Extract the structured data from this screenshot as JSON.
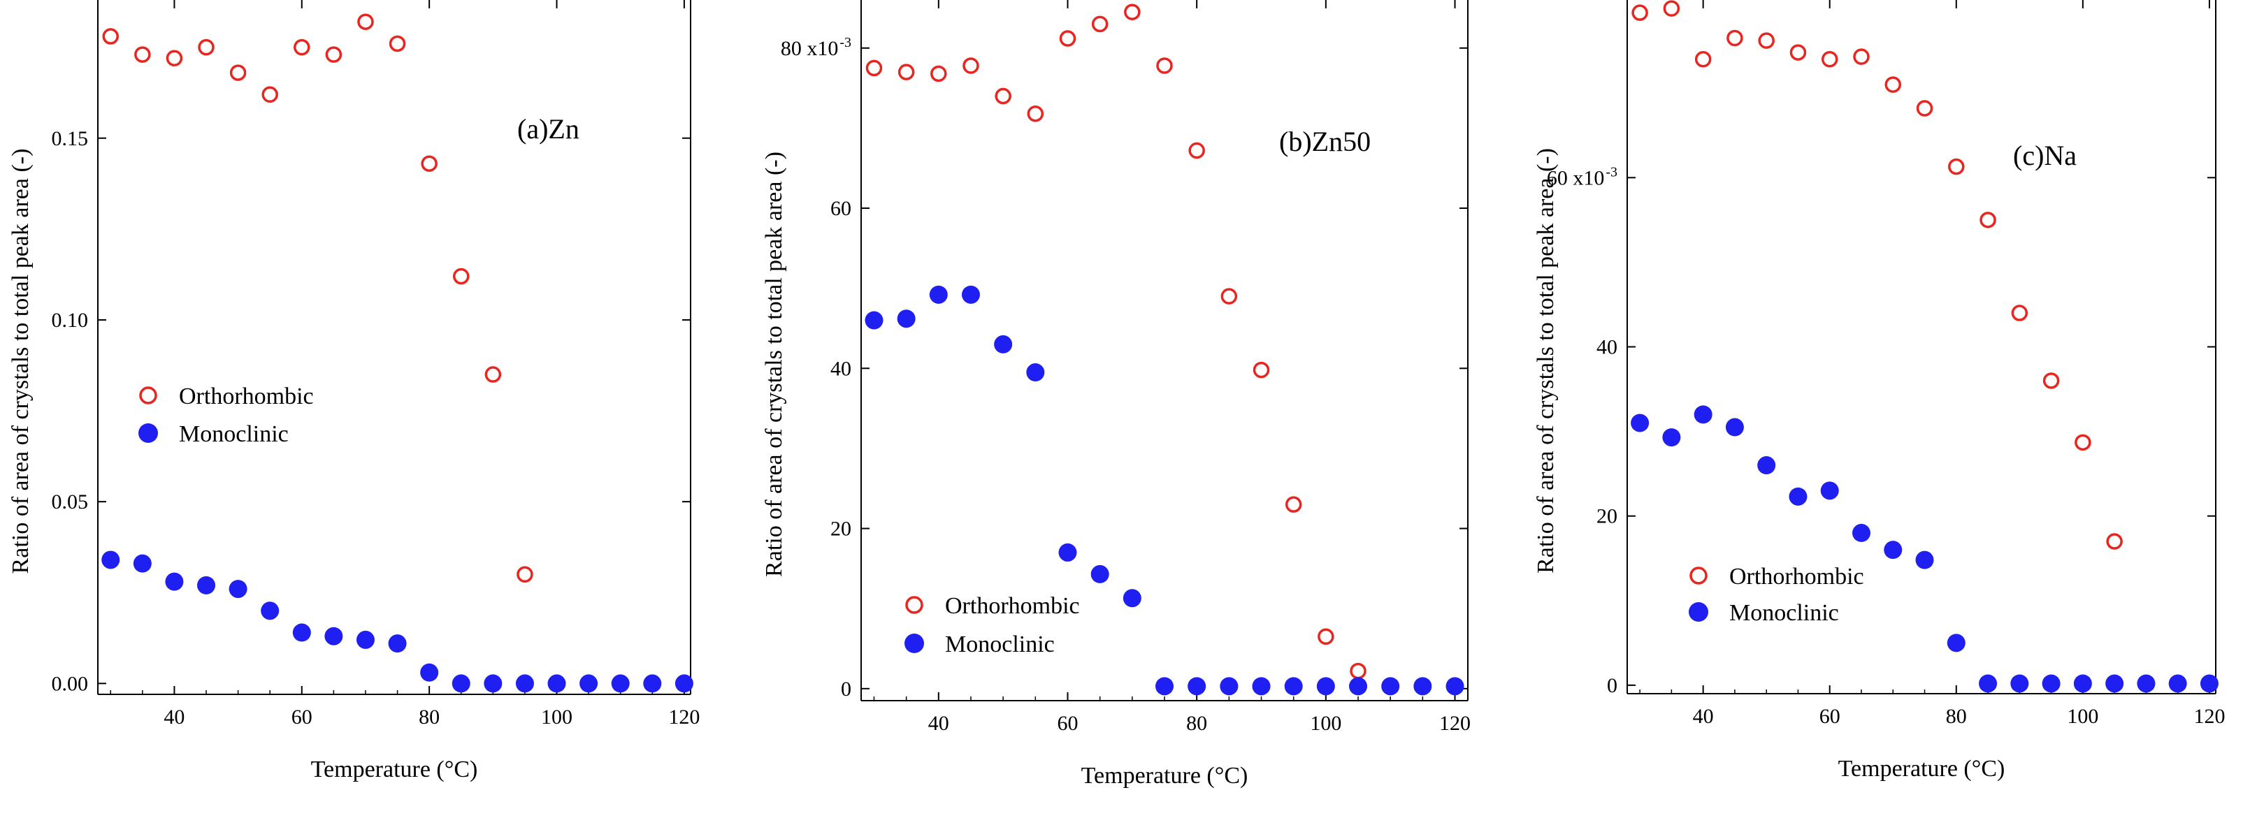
{
  "figure_title": "Ratio of area of crystals to total peak area vs temperature",
  "colors": {
    "orthorhombic": "#e8251f",
    "monoclinic": "#1f1ff2",
    "axis": "#000000"
  },
  "chart_data": [
    {
      "type": "scatter",
      "title": "(a)Zn",
      "xlabel": "Temperature (°C)",
      "ylabel": "Ratio of area of crystals to total peak area (-)",
      "xlim": [
        28,
        121
      ],
      "ylim": [
        -0.003,
        0.188
      ],
      "x_ticks": [
        40,
        60,
        80,
        100,
        120
      ],
      "x_tick_labels": [
        "40",
        "60",
        "80",
        "100",
        "120"
      ],
      "y_ticks": [
        0.0,
        0.05,
        0.1,
        0.15
      ],
      "y_tick_labels": [
        "0.00",
        "0.05",
        "0.10",
        "0.15"
      ],
      "legend": {
        "position": "center-left",
        "entries": [
          "Orthorhombic",
          "Monoclinic"
        ]
      },
      "series": [
        {
          "name": "Orthorhombic",
          "marker": "open-circle",
          "x": [
            30,
            35,
            40,
            45,
            50,
            55,
            60,
            65,
            70,
            75,
            80,
            85,
            90,
            95
          ],
          "y": [
            0.178,
            0.173,
            0.172,
            0.175,
            0.168,
            0.162,
            0.175,
            0.173,
            0.182,
            0.176,
            0.143,
            0.112,
            0.085,
            0.03
          ]
        },
        {
          "name": "Monoclinic",
          "marker": "filled-circle",
          "x": [
            30,
            35,
            40,
            45,
            50,
            55,
            60,
            65,
            70,
            75,
            80,
            85,
            90,
            95,
            100,
            105,
            110,
            115,
            120
          ],
          "y": [
            0.034,
            0.033,
            0.028,
            0.027,
            0.026,
            0.02,
            0.014,
            0.013,
            0.012,
            0.011,
            0.003,
            0.0,
            0.0,
            0.0,
            0.0,
            0.0,
            0.0,
            0.0,
            0.0
          ]
        }
      ]
    },
    {
      "type": "scatter",
      "title": "(b)Zn50",
      "xlabel": "Temperature (°C)",
      "ylabel": "Ratio of area of crystals to total peak area (-)",
      "xlim": [
        28,
        122
      ],
      "ylim": [
        -1.5,
        86
      ],
      "x_ticks": [
        40,
        60,
        80,
        100,
        120
      ],
      "x_tick_labels": [
        "40",
        "60",
        "80",
        "100",
        "120"
      ],
      "y_ticks": [
        0,
        20,
        40,
        60,
        80
      ],
      "y_tick_labels": [
        "0",
        "20",
        "40",
        "60",
        "80 x10"
      ],
      "y_tick_exponent": "-3",
      "legend": {
        "position": "bottom-left",
        "entries": [
          "Orthorhombic",
          "Monoclinic"
        ]
      },
      "series": [
        {
          "name": "Orthorhombic",
          "marker": "open-circle",
          "x": [
            30,
            35,
            40,
            45,
            50,
            55,
            60,
            65,
            70,
            75,
            80,
            85,
            90,
            95,
            100,
            105
          ],
          "y": [
            77.5,
            77,
            76.8,
            77.8,
            74,
            71.8,
            81.2,
            83,
            84.5,
            77.8,
            67.2,
            49,
            39.8,
            23,
            6.5,
            2.2
          ]
        },
        {
          "name": "Monoclinic",
          "marker": "filled-circle",
          "x": [
            30,
            35,
            40,
            45,
            50,
            55,
            60,
            65,
            70,
            75,
            80,
            85,
            90,
            95,
            100,
            105,
            110,
            115,
            120
          ],
          "y": [
            46,
            46.2,
            49.2,
            49.2,
            43,
            39.5,
            17,
            14.3,
            11.3,
            0.3,
            0.3,
            0.3,
            0.3,
            0.3,
            0.3,
            0.3,
            0.3,
            0.3,
            0.3
          ]
        }
      ]
    },
    {
      "type": "scatter",
      "title": "(c)Na",
      "xlabel": "Temperature (°C)",
      "ylabel": "Ratio of area of crystals to total peak area (-)",
      "xlim": [
        28,
        121
      ],
      "ylim": [
        -1,
        81
      ],
      "x_ticks": [
        40,
        60,
        80,
        100,
        120
      ],
      "x_tick_labels": [
        "40",
        "60",
        "80",
        "100",
        "120"
      ],
      "y_ticks": [
        0,
        20,
        40,
        60
      ],
      "y_tick_labels": [
        "0",
        "20",
        "40",
        "60 x10"
      ],
      "y_tick_exponent": "-3",
      "legend": {
        "position": "bottom-left",
        "entries": [
          "Orthorhombic",
          "Monoclinic"
        ]
      },
      "series": [
        {
          "name": "Orthorhombic",
          "marker": "open-circle",
          "x": [
            30,
            35,
            40,
            45,
            50,
            55,
            60,
            65,
            70,
            75,
            80,
            85,
            90,
            95,
            100,
            105
          ],
          "y": [
            79.5,
            80,
            74,
            76.5,
            76.2,
            74.8,
            74,
            74.3,
            71,
            68.2,
            61.3,
            55,
            44,
            36,
            28.7,
            17
          ]
        },
        {
          "name": "Monoclinic",
          "marker": "filled-circle",
          "x": [
            30,
            35,
            40,
            45,
            50,
            55,
            60,
            65,
            70,
            75,
            80,
            85,
            90,
            95,
            100,
            105,
            110,
            115,
            120
          ],
          "y": [
            31,
            29.3,
            32,
            30.5,
            26,
            22.3,
            23,
            18,
            16,
            14.8,
            5,
            0.2,
            0.2,
            0.2,
            0.2,
            0.2,
            0.2,
            0.2,
            0.2
          ]
        }
      ]
    }
  ]
}
